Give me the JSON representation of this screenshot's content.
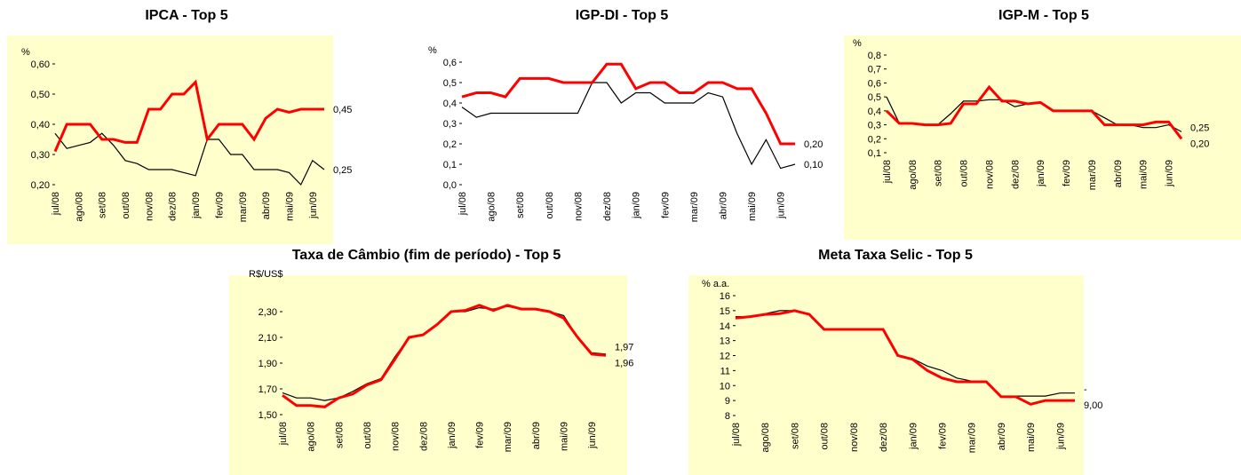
{
  "chart_data": [
    {
      "type": "line",
      "title": "IPCA - Top 5",
      "y_label": "%",
      "background": "#ffffcc",
      "categories": [
        "jul/08",
        null,
        "ago/08",
        null,
        "set/08",
        null,
        "out/08",
        null,
        "nov/08",
        null,
        "dez/08",
        null,
        "jan/09",
        null,
        "fev/09",
        null,
        "mar/09",
        null,
        "abr/09",
        null,
        "mai/09",
        null,
        "jun/09",
        null
      ],
      "series": [
        {
          "color": "#000000",
          "values": [
            0.37,
            0.32,
            0.33,
            0.34,
            0.37,
            0.33,
            0.28,
            0.27,
            0.25,
            0.25,
            0.25,
            0.24,
            0.23,
            0.35,
            0.35,
            0.3,
            0.3,
            0.25,
            0.25,
            0.25,
            0.24,
            0.2,
            0.28,
            0.25
          ],
          "end_label": {
            "value": 0.25,
            "label": "0,25"
          }
        },
        {
          "color": "#ff0000",
          "values": [
            0.31,
            0.4,
            0.4,
            0.4,
            0.35,
            0.35,
            0.34,
            0.34,
            0.45,
            0.45,
            0.5,
            0.5,
            0.54,
            0.35,
            0.4,
            0.4,
            0.4,
            0.35,
            0.42,
            0.45,
            0.44,
            0.45,
            0.45,
            0.45
          ],
          "end_label": {
            "value": 0.45,
            "label": "0,45"
          }
        }
      ],
      "ylim": [
        0.2,
        0.6
      ],
      "yticks": [
        {
          "value": 0.2,
          "label": "0,20"
        },
        {
          "value": 0.3,
          "label": "0,30"
        },
        {
          "value": 0.4,
          "label": "0,40"
        },
        {
          "value": 0.5,
          "label": "0,50"
        },
        {
          "value": 0.6,
          "label": "0,60"
        }
      ]
    },
    {
      "type": "line",
      "title": "IGP-DI - Top 5",
      "y_label": "%",
      "categories": [
        "jul/08",
        null,
        "ago/08",
        null,
        "set/08",
        null,
        "out/08",
        null,
        "nov/08",
        null,
        "dez/08",
        null,
        "jan/09",
        null,
        "fev/09",
        null,
        "mar/09",
        null,
        "abr/09",
        null,
        "mai/09",
        null,
        "jun/09",
        null
      ],
      "series": [
        {
          "color": "#000000",
          "values": [
            0.38,
            0.33,
            0.35,
            0.35,
            0.35,
            0.35,
            0.35,
            0.35,
            0.35,
            0.5,
            0.5,
            0.4,
            0.45,
            0.45,
            0.4,
            0.4,
            0.4,
            0.45,
            0.43,
            0.25,
            0.1,
            0.22,
            0.08,
            0.1
          ],
          "end_label": {
            "value": 0.1,
            "label": "0,10"
          }
        },
        {
          "color": "#ff0000",
          "values": [
            0.43,
            0.45,
            0.45,
            0.43,
            0.52,
            0.52,
            0.52,
            0.5,
            0.5,
            0.5,
            0.59,
            0.59,
            0.47,
            0.5,
            0.5,
            0.45,
            0.45,
            0.5,
            0.5,
            0.47,
            0.47,
            0.35,
            0.2,
            0.2
          ],
          "end_label": {
            "value": 0.2,
            "label": "0,20"
          }
        }
      ],
      "ylim": [
        0,
        0.6
      ],
      "yticks": [
        {
          "value": 0,
          "label": "0,0"
        },
        {
          "value": 0.1,
          "label": "0,1"
        },
        {
          "value": 0.2,
          "label": "0,2"
        },
        {
          "value": 0.3,
          "label": "0,3"
        },
        {
          "value": 0.4,
          "label": "0,4"
        },
        {
          "value": 0.5,
          "label": "0,5"
        },
        {
          "value": 0.6,
          "label": "0,6"
        }
      ]
    },
    {
      "type": "line",
      "title": "IGP-M - Top 5",
      "y_label": "%",
      "background": "#ffffcc",
      "categories": [
        "jul/08",
        null,
        "ago/08",
        null,
        "set/08",
        null,
        "out/08",
        null,
        "nov/08",
        null,
        "dez/08",
        null,
        "jan/09",
        null,
        "fev/09",
        null,
        "mar/09",
        null,
        "abr/09",
        null,
        "mai/09",
        null,
        "jun/09",
        null
      ],
      "series": [
        {
          "color": "#000000",
          "values": [
            0.5,
            0.31,
            0.31,
            0.3,
            0.3,
            0.38,
            0.47,
            0.47,
            0.48,
            0.48,
            0.43,
            0.45,
            0.46,
            0.4,
            0.4,
            0.4,
            0.4,
            0.35,
            0.3,
            0.3,
            0.28,
            0.28,
            0.3,
            0.25
          ],
          "end_label": {
            "value": 0.25,
            "label": "0,25"
          }
        },
        {
          "color": "#ff0000",
          "values": [
            0.4,
            0.31,
            0.31,
            0.3,
            0.3,
            0.31,
            0.45,
            0.45,
            0.57,
            0.47,
            0.47,
            0.45,
            0.46,
            0.4,
            0.4,
            0.4,
            0.4,
            0.3,
            0.3,
            0.3,
            0.3,
            0.32,
            0.32,
            0.2
          ],
          "end_label": {
            "value": 0.2,
            "label": "0,20"
          }
        }
      ],
      "ylim": [
        0.1,
        0.8
      ],
      "yticks": [
        {
          "value": 0.1,
          "label": "0,1"
        },
        {
          "value": 0.2,
          "label": "0,2"
        },
        {
          "value": 0.3,
          "label": "0,3"
        },
        {
          "value": 0.4,
          "label": "0,4"
        },
        {
          "value": 0.5,
          "label": "0,5"
        },
        {
          "value": 0.6,
          "label": "0,6"
        },
        {
          "value": 0.7,
          "label": "0,7"
        },
        {
          "value": 0.8,
          "label": "0,8"
        }
      ]
    },
    {
      "type": "line",
      "title": "Taxa de Câmbio (fim de período) - Top 5",
      "y_label": "R$/US$",
      "background": "#ffffcc",
      "categories": [
        "jul/08",
        null,
        "ago/08",
        null,
        "set/08",
        null,
        "out/08",
        null,
        "nov/08",
        null,
        "dez/08",
        null,
        "jan/09",
        null,
        "fev/09",
        null,
        "mar/09",
        null,
        "abr/09",
        null,
        "mai/09",
        null,
        "jun/09",
        null
      ],
      "series": [
        {
          "color": "#000000",
          "values": [
            1.67,
            1.63,
            1.63,
            1.61,
            1.63,
            1.68,
            1.74,
            1.78,
            1.95,
            2.1,
            2.12,
            2.2,
            2.3,
            2.3,
            2.33,
            2.32,
            2.34,
            2.32,
            2.32,
            2.3,
            2.27,
            2.1,
            1.98,
            1.97
          ],
          "end_label": {
            "value": 1.97,
            "label": "1,97"
          }
        },
        {
          "color": "#ff0000",
          "values": [
            1.65,
            1.57,
            1.57,
            1.56,
            1.63,
            1.66,
            1.73,
            1.77,
            1.93,
            2.1,
            2.12,
            2.2,
            2.3,
            2.31,
            2.35,
            2.31,
            2.35,
            2.32,
            2.32,
            2.3,
            2.25,
            2.1,
            1.97,
            1.96
          ],
          "end_label": {
            "value": 1.96,
            "label": "1,96"
          }
        }
      ],
      "ylim": [
        1.5,
        2.5
      ],
      "yticks": [
        {
          "value": 1.5,
          "label": "1,50"
        },
        {
          "value": 1.7,
          "label": "1,70"
        },
        {
          "value": 1.9,
          "label": "1,90"
        },
        {
          "value": 2.1,
          "label": "2,10"
        },
        {
          "value": 2.3,
          "label": "2,30"
        }
      ]
    },
    {
      "type": "line",
      "title": "Meta Taxa Selic - Top 5",
      "y_label": "% a.a.",
      "background": "#ffffcc",
      "categories": [
        "jul/08",
        null,
        "ago/08",
        null,
        "set/08",
        null,
        "out/08",
        null,
        "nov/08",
        null,
        "dez/08",
        null,
        "jan/09",
        null,
        "fev/09",
        null,
        "mar/09",
        null,
        "abr/09",
        null,
        "mai/09",
        null,
        "jun/09",
        null
      ],
      "series": [
        {
          "color": "#000000",
          "values": [
            14.6,
            14.6,
            14.8,
            15.0,
            15.0,
            14.8,
            13.75,
            13.75,
            13.75,
            13.75,
            13.75,
            12.0,
            11.8,
            11.3,
            11.0,
            10.5,
            10.3,
            10.3,
            9.3,
            9.3,
            9.3,
            9.3,
            9.5,
            9.5
          ],
          "end_label": {
            "value": 9.5,
            "label": "-"
          }
        },
        {
          "color": "#ff0000",
          "values": [
            14.5,
            14.6,
            14.75,
            14.8,
            15.0,
            14.75,
            13.75,
            13.75,
            13.75,
            13.75,
            13.75,
            12.0,
            11.75,
            11.0,
            10.5,
            10.25,
            10.25,
            10.25,
            9.25,
            9.25,
            8.75,
            9.0,
            9.0,
            9.0
          ],
          "end_label": {
            "value": 9.0,
            "label": "9,00"
          }
        }
      ],
      "ylim": [
        8,
        16
      ],
      "yticks": [
        8,
        9,
        10,
        11,
        12,
        13,
        14,
        15,
        16
      ]
    }
  ]
}
